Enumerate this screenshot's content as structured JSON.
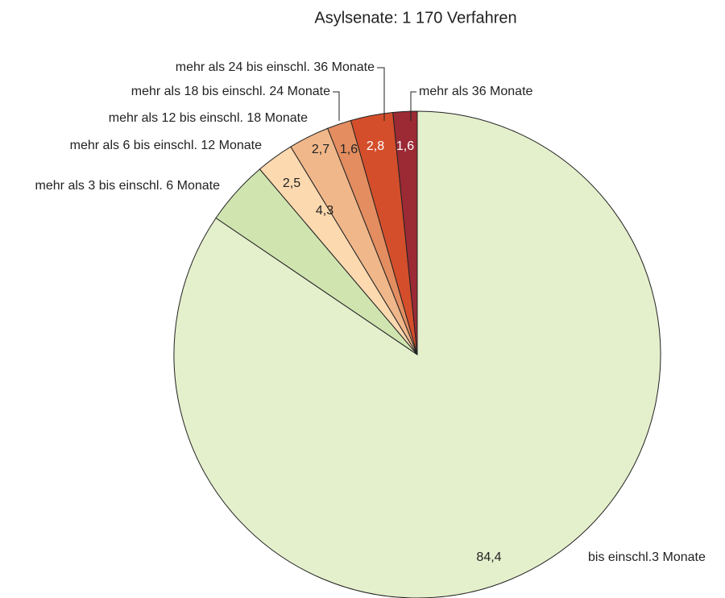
{
  "chart_data": {
    "type": "pie",
    "title": "Asylsenate: 1 170 Verfahren",
    "categories": [
      "bis einschl.3 Monate",
      "mehr als 3 bis einschl. 6 Monate",
      "mehr als 6 bis einschl. 12 Monate",
      "mehr als 12 bis einschl. 18 Monate",
      "mehr als 18 bis einschl. 24 Monate",
      "mehr als 24 bis einschl. 36 Monate",
      "mehr als 36 Monate"
    ],
    "values": [
      84.4,
      4.3,
      2.5,
      2.7,
      1.6,
      2.8,
      1.6
    ],
    "value_labels": [
      "84,4",
      "4,3",
      "2,5",
      "2,7",
      "1,6",
      "2,8",
      "1,6"
    ],
    "colors": [
      "#e4efcc",
      "#d0e4b0",
      "#fdd9b0",
      "#f0b78a",
      "#e38d60",
      "#d44e2b",
      "#9b2a35"
    ]
  }
}
